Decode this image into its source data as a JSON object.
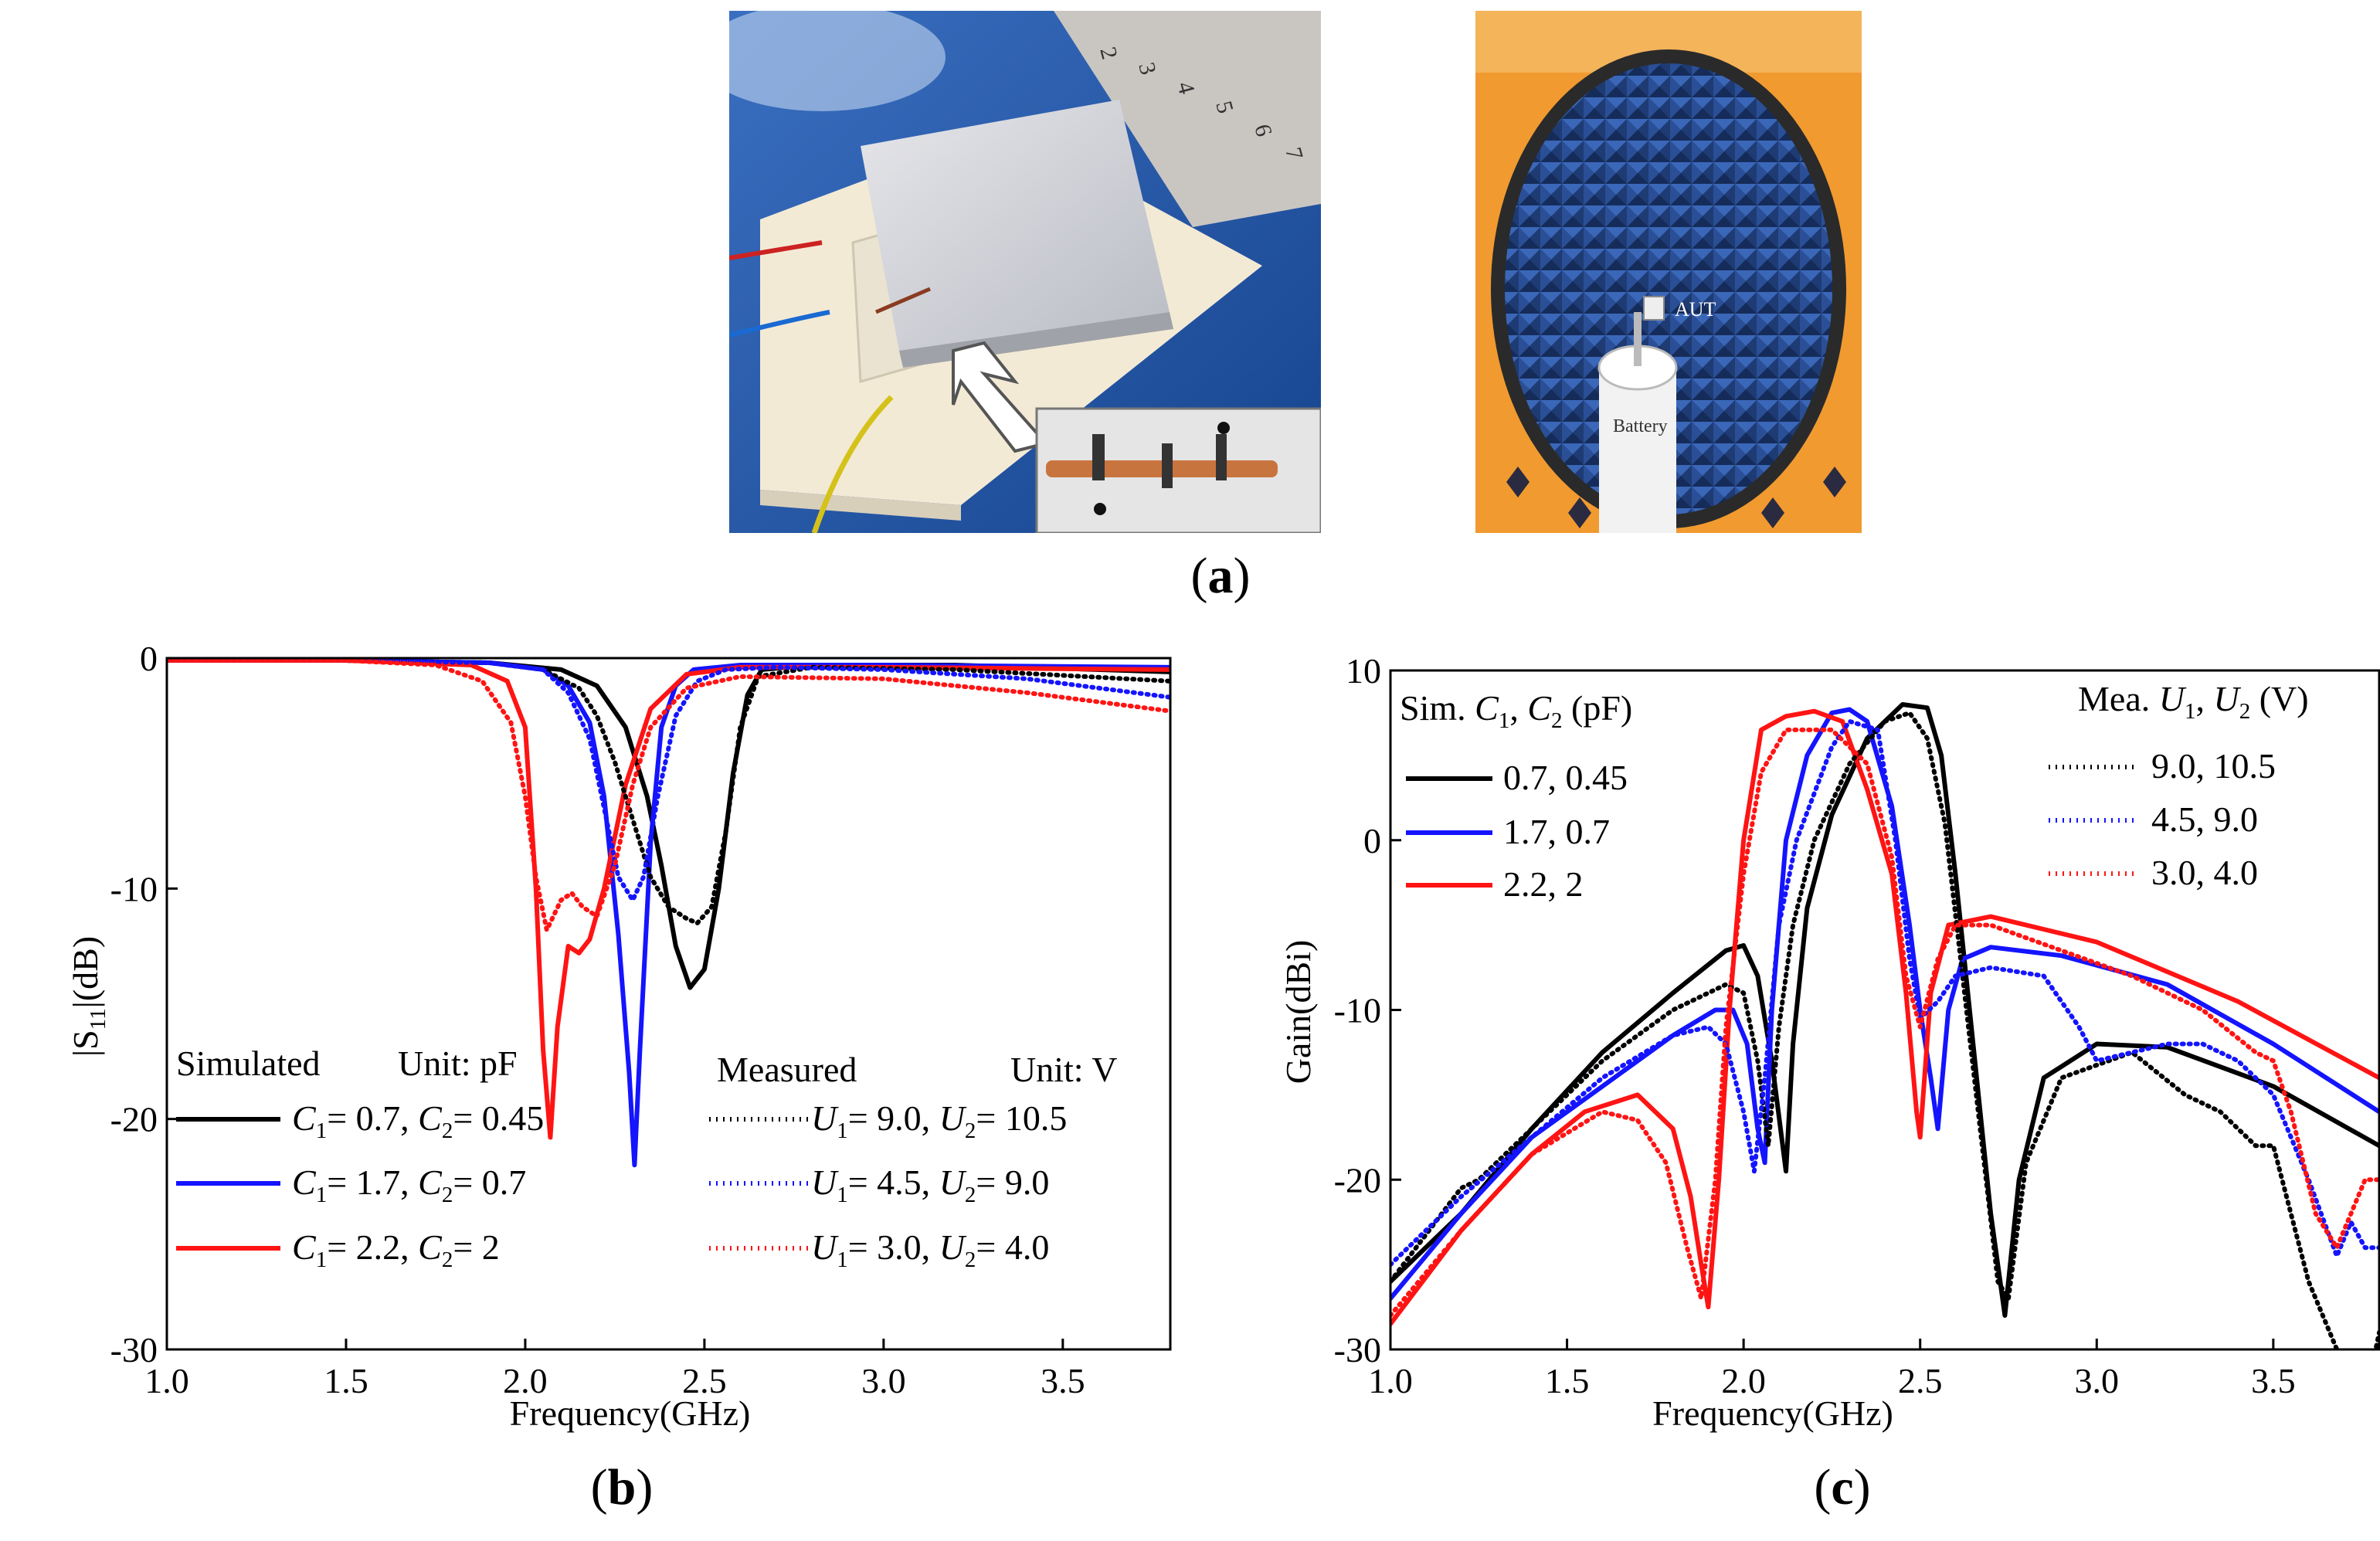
{
  "figure": {
    "captions": {
      "a": "(a)",
      "b": "(b)",
      "c": "(c)",
      "a_letter": "a",
      "b_letter": "b",
      "c_letter": "c"
    },
    "photo_left": {
      "description_labels": []
    },
    "photo_right": {
      "label_aut": "AUT",
      "label_battery": "Battery"
    }
  },
  "colors": {
    "black": "#000000",
    "blue": "#1414ff",
    "red": "#ff1414"
  },
  "chart_data": [
    {
      "id": "b",
      "type": "line",
      "xlabel": "Frequency(GHz)",
      "ylabel": "|S11|(dB)",
      "ylabel_main": "|S",
      "ylabel_sub": "11",
      "ylabel_tail": "|(dB)",
      "xlim": [
        1.0,
        3.8
      ],
      "ylim": [
        -30,
        0
      ],
      "xticks": [
        "1.0",
        "1.5",
        "2.0",
        "2.5",
        "3.0",
        "3.5"
      ],
      "xtick_values": [
        1.0,
        1.5,
        2.0,
        2.5,
        3.0,
        3.5
      ],
      "yticks": [
        "0",
        "-10",
        "-20",
        "-30"
      ],
      "ytick_values": [
        0,
        -10,
        -20,
        -30
      ],
      "legend_sim_title": "Simulated",
      "legend_sim_unit": "Unit: pF",
      "legend_mea_title": "Measured",
      "legend_mea_unit": "Unit: V",
      "series": [
        {
          "name": "C1= 0.7, C2= 0.45",
          "legend": [
            "C",
            "1",
            "= 0.7, C",
            "2",
            "= 0.45"
          ],
          "color": "#000000",
          "style": "solid",
          "x": [
            1.0,
            1.5,
            1.9,
            2.1,
            2.2,
            2.28,
            2.34,
            2.38,
            2.42,
            2.46,
            2.5,
            2.54,
            2.58,
            2.62,
            2.66,
            2.8,
            3.2,
            3.8
          ],
          "y": [
            -0.1,
            -0.1,
            -0.2,
            -0.5,
            -1.2,
            -3,
            -6,
            -9,
            -12.5,
            -14.3,
            -13.5,
            -10,
            -5,
            -1.6,
            -0.5,
            -0.3,
            -0.3,
            -0.6
          ]
        },
        {
          "name": "C1= 1.7, C2= 0.7",
          "legend": [
            "C",
            "1",
            "= 1.7, C",
            "2",
            "= 0.7"
          ],
          "color": "#1414ff",
          "style": "solid",
          "x": [
            1.0,
            1.5,
            1.9,
            2.05,
            2.12,
            2.18,
            2.22,
            2.26,
            2.29,
            2.305,
            2.32,
            2.35,
            2.38,
            2.42,
            2.47,
            2.6,
            3.0,
            3.8
          ],
          "y": [
            -0.1,
            -0.1,
            -0.2,
            -0.5,
            -1.2,
            -2.8,
            -6,
            -12,
            -18,
            -22,
            -17,
            -8,
            -3,
            -1.2,
            -0.5,
            -0.3,
            -0.3,
            -0.4
          ]
        },
        {
          "name": "C1= 2.2, C2= 2",
          "legend": [
            "C",
            "1",
            "= 2.2, C",
            "2",
            "= 2"
          ],
          "color": "#ff1414",
          "style": "solid",
          "x": [
            1.0,
            1.5,
            1.85,
            1.95,
            2.0,
            2.03,
            2.05,
            2.07,
            2.09,
            2.12,
            2.15,
            2.18,
            2.22,
            2.28,
            2.35,
            2.45,
            2.6,
            3.0,
            3.8
          ],
          "y": [
            -0.1,
            -0.1,
            -0.3,
            -1,
            -3,
            -10,
            -17,
            -20.8,
            -16,
            -12.5,
            -12.8,
            -12.2,
            -10,
            -5.5,
            -2.2,
            -0.7,
            -0.4,
            -0.4,
            -0.5
          ]
        },
        {
          "name": "U1= 9.0, U2= 10.5",
          "legend": [
            "U",
            "1",
            "= 9.0, U",
            "2",
            "= 10.5"
          ],
          "color": "#000000",
          "style": "dotted",
          "x": [
            1.0,
            1.5,
            1.9,
            2.05,
            2.15,
            2.2,
            2.25,
            2.3,
            2.35,
            2.4,
            2.45,
            2.48,
            2.52,
            2.56,
            2.6,
            2.65,
            2.8,
            3.2,
            3.8
          ],
          "y": [
            -0.1,
            -0.1,
            -0.2,
            -0.5,
            -1.3,
            -2.5,
            -4.5,
            -7,
            -9.5,
            -10.8,
            -11.3,
            -11.5,
            -10.8,
            -7.5,
            -3,
            -0.8,
            -0.4,
            -0.5,
            -1.0
          ]
        },
        {
          "name": "U1= 4.5, U2= 9.0",
          "legend": [
            "U",
            "1",
            "= 4.5, U",
            "2",
            "= 9.0"
          ],
          "color": "#1414ff",
          "style": "dotted",
          "x": [
            1.0,
            1.5,
            1.9,
            2.05,
            2.12,
            2.18,
            2.22,
            2.26,
            2.3,
            2.33,
            2.37,
            2.42,
            2.48,
            2.56,
            2.7,
            3.0,
            3.4,
            3.8
          ],
          "y": [
            -0.1,
            -0.1,
            -0.2,
            -0.5,
            -1.5,
            -3.5,
            -6.5,
            -9.5,
            -10.5,
            -9.5,
            -6,
            -2.5,
            -1,
            -0.5,
            -0.4,
            -0.5,
            -0.9,
            -1.7
          ]
        },
        {
          "name": "U1= 3.0, U2= 4.0",
          "legend": [
            "U",
            "1",
            "= 3.0, U",
            "2",
            "= 4.0"
          ],
          "color": "#ff1414",
          "style": "dotted",
          "x": [
            1.0,
            1.5,
            1.75,
            1.88,
            1.96,
            2.0,
            2.03,
            2.06,
            2.1,
            2.13,
            2.16,
            2.2,
            2.25,
            2.3,
            2.35,
            2.45,
            2.6,
            3.0,
            3.4,
            3.8
          ],
          "y": [
            -0.1,
            -0.1,
            -0.3,
            -1.0,
            -2.8,
            -6,
            -9.5,
            -11.8,
            -10.5,
            -10.2,
            -10.8,
            -11.2,
            -9,
            -5.5,
            -3,
            -1.3,
            -0.8,
            -0.9,
            -1.5,
            -2.3
          ]
        }
      ]
    },
    {
      "id": "c",
      "type": "line",
      "xlabel": "Frequency(GHz)",
      "ylabel": "Gain(dBi)",
      "xlim": [
        1.0,
        3.8
      ],
      "ylim": [
        -30,
        10
      ],
      "xticks": [
        "1.0",
        "1.5",
        "2.0",
        "2.5",
        "3.0",
        "3.5"
      ],
      "xtick_values": [
        1.0,
        1.5,
        2.0,
        2.5,
        3.0,
        3.5
      ],
      "yticks": [
        "10",
        "0",
        "-10",
        "-20",
        "-30"
      ],
      "ytick_values": [
        10,
        0,
        -10,
        -20,
        -30
      ],
      "legend_sim_title": [
        "Sim. ",
        "C",
        "1",
        ", ",
        "C",
        "2",
        " (pF)"
      ],
      "legend_mea_title": [
        "Mea. ",
        "U",
        "1",
        ", ",
        "U",
        "2",
        " (V)"
      ],
      "series": [
        {
          "name": "0.7, 0.45",
          "color": "#000000",
          "style": "solid",
          "x": [
            1.0,
            1.2,
            1.4,
            1.6,
            1.8,
            1.95,
            2.0,
            2.04,
            2.08,
            2.12,
            2.14,
            2.18,
            2.25,
            2.35,
            2.45,
            2.52,
            2.56,
            2.6,
            2.65,
            2.7,
            2.74,
            2.78,
            2.85,
            3.0,
            3.2,
            3.5,
            3.8
          ],
          "y": [
            -26,
            -22,
            -17,
            -12.5,
            -9,
            -6.5,
            -6.2,
            -8,
            -13,
            -19.5,
            -12,
            -4,
            1.5,
            6,
            8,
            7.8,
            5,
            -2,
            -12,
            -22,
            -28,
            -20,
            -14,
            -12,
            -12.2,
            -14.5,
            -18
          ]
        },
        {
          "name": "1.7, 0.7",
          "color": "#1414ff",
          "style": "solid",
          "x": [
            1.0,
            1.2,
            1.4,
            1.6,
            1.8,
            1.92,
            1.97,
            2.01,
            2.04,
            2.06,
            2.08,
            2.12,
            2.18,
            2.25,
            2.3,
            2.35,
            2.42,
            2.47,
            2.5,
            2.53,
            2.55,
            2.58,
            2.62,
            2.7,
            2.9,
            3.2,
            3.5,
            3.8
          ],
          "y": [
            -27,
            -22,
            -17.5,
            -14.5,
            -11.5,
            -10,
            -10,
            -12,
            -17,
            -19,
            -10,
            0,
            5,
            7.5,
            7.7,
            7,
            2,
            -5,
            -10,
            -14,
            -17,
            -10,
            -7,
            -6.3,
            -6.8,
            -8.5,
            -12,
            -16
          ]
        },
        {
          "name": "2.2, 2",
          "color": "#ff1414",
          "style": "solid",
          "x": [
            1.0,
            1.2,
            1.4,
            1.55,
            1.7,
            1.8,
            1.85,
            1.88,
            1.9,
            1.93,
            1.96,
            2.0,
            2.05,
            2.12,
            2.2,
            2.28,
            2.35,
            2.42,
            2.46,
            2.49,
            2.5,
            2.53,
            2.58,
            2.7,
            3.0,
            3.4,
            3.8
          ],
          "y": [
            -28.5,
            -23,
            -18.5,
            -16,
            -15,
            -17,
            -21,
            -25,
            -27.5,
            -20,
            -10,
            0,
            6.5,
            7.3,
            7.6,
            7,
            3,
            -2,
            -9,
            -16,
            -17.5,
            -9,
            -5,
            -4.5,
            -6,
            -9.5,
            -14
          ]
        },
        {
          "name": "9.0, 10.5",
          "color": "#000000",
          "style": "dotted",
          "x": [
            1.0,
            1.2,
            1.25,
            1.4,
            1.6,
            1.8,
            1.95,
            2.0,
            2.04,
            2.07,
            2.1,
            2.14,
            2.2,
            2.3,
            2.4,
            2.47,
            2.52,
            2.57,
            2.62,
            2.67,
            2.72,
            2.75,
            2.8,
            2.9,
            3.1,
            3.25,
            3.35,
            3.45,
            3.5,
            3.55,
            3.6,
            3.7,
            3.78,
            3.8
          ],
          "y": [
            -26,
            -20.5,
            -20,
            -17,
            -13,
            -10,
            -8.5,
            -9,
            -13,
            -18,
            -11,
            -5,
            0,
            4.5,
            7,
            7.5,
            6,
            1,
            -8,
            -17,
            -26,
            -27,
            -19,
            -14,
            -12.5,
            -15,
            -16,
            -18,
            -18,
            -22,
            -26,
            -31,
            -31,
            -29
          ]
        },
        {
          "name": "4.5, 9.0",
          "color": "#1414ff",
          "style": "dotted",
          "x": [
            1.0,
            1.2,
            1.4,
            1.6,
            1.8,
            1.9,
            1.95,
            2.0,
            2.03,
            2.06,
            2.1,
            2.15,
            2.25,
            2.3,
            2.38,
            2.43,
            2.47,
            2.5,
            2.55,
            2.6,
            2.7,
            2.85,
            2.95,
            3.0,
            3.1,
            3.2,
            3.3,
            3.4,
            3.5,
            3.6,
            3.68,
            3.72,
            3.76,
            3.8
          ],
          "y": [
            -25,
            -21,
            -17.5,
            -14,
            -11.5,
            -11,
            -12,
            -16,
            -19.5,
            -14,
            -5,
            0,
            5.5,
            7,
            6.5,
            0,
            -7,
            -10.5,
            -9.5,
            -8,
            -7.5,
            -8,
            -11,
            -13,
            -12.5,
            -12,
            -12,
            -13,
            -15,
            -20,
            -24.5,
            -22.5,
            -24,
            -24
          ]
        },
        {
          "name": "3.0, 4.0",
          "color": "#ff1414",
          "style": "dotted",
          "x": [
            1.0,
            1.2,
            1.4,
            1.6,
            1.7,
            1.78,
            1.84,
            1.88,
            1.92,
            1.95,
            2.0,
            2.05,
            2.12,
            2.25,
            2.35,
            2.42,
            2.46,
            2.5,
            2.55,
            2.6,
            2.7,
            2.9,
            3.1,
            3.3,
            3.45,
            3.5,
            3.55,
            3.62,
            3.68,
            3.72,
            3.76,
            3.8
          ],
          "y": [
            -28,
            -23,
            -18.5,
            -16,
            -16.5,
            -19,
            -24,
            -27,
            -20,
            -11,
            -2,
            4,
            6.5,
            6.5,
            4.5,
            -1,
            -8,
            -11,
            -7,
            -5,
            -5,
            -6.5,
            -8,
            -10,
            -12.5,
            -13,
            -16,
            -22,
            -24,
            -22,
            -20,
            -20
          ]
        }
      ]
    }
  ]
}
